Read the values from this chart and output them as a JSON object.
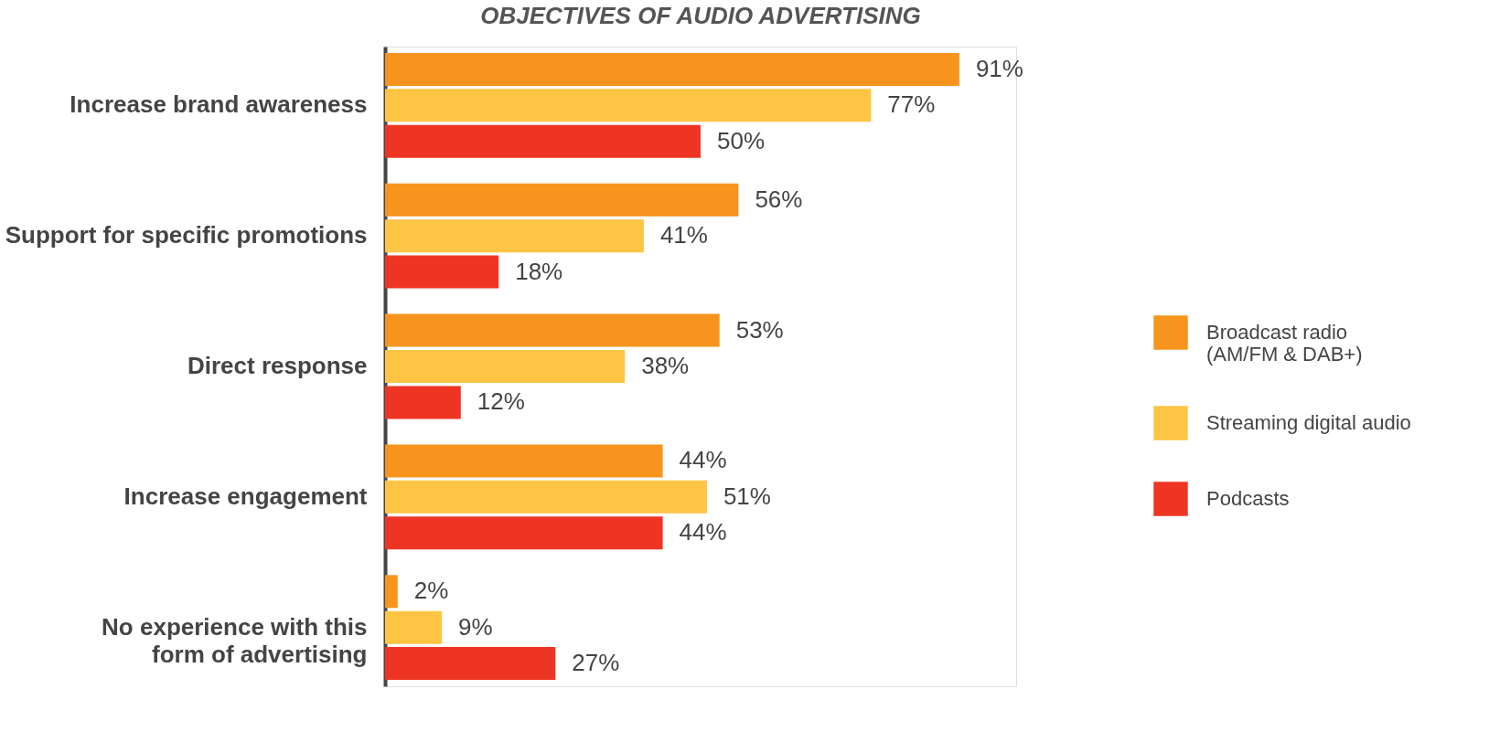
{
  "chart_data": {
    "type": "bar",
    "orientation": "horizontal",
    "title": "OBJECTIVES OF AUDIO ADVERTISING",
    "categories": [
      "Increase brand awareness",
      "Support for specific promotions",
      "Direct response",
      "Increase engagement",
      "No experience with this\nform of advertising"
    ],
    "series": [
      {
        "name": "Broadcast radio\n(AM/FM & DAB+)",
        "color": "#f7941d",
        "values": [
          91,
          56,
          53,
          44,
          2
        ],
        "value_labels": [
          "91%",
          "56%",
          "53%",
          "44%",
          "2%"
        ]
      },
      {
        "name": "Streaming digital audio",
        "color": "#fdc543",
        "values": [
          77,
          41,
          38,
          51,
          9
        ],
        "value_labels": [
          "77%",
          "41%",
          "38%",
          "51%",
          "9%"
        ]
      },
      {
        "name": "Podcasts",
        "color": "#ee3524",
        "values": [
          50,
          18,
          12,
          44,
          27
        ],
        "value_labels": [
          "50%",
          "18%",
          "12%",
          "44%",
          "27%"
        ]
      }
    ],
    "xlim": [
      0,
      100
    ],
    "tick_labels": "y",
    "grid": false,
    "legend": "right"
  }
}
